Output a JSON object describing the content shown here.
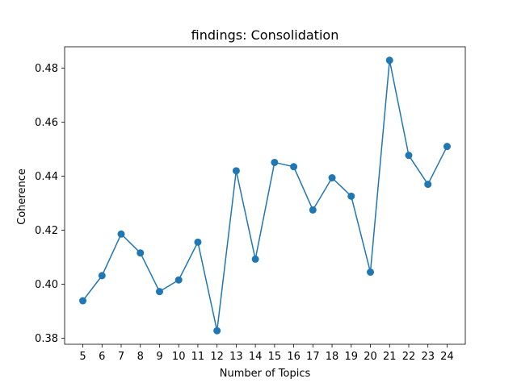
{
  "chart_data": {
    "type": "line",
    "title": "findings: Consolidation",
    "xlabel": "Number of Topics",
    "ylabel": "Coherence",
    "x": [
      5,
      6,
      7,
      8,
      9,
      10,
      11,
      12,
      13,
      14,
      15,
      16,
      17,
      18,
      19,
      20,
      21,
      22,
      23,
      24
    ],
    "series": [
      {
        "values": [
          0.3939,
          0.4032,
          0.4186,
          0.4116,
          0.3973,
          0.4016,
          0.4156,
          0.3828,
          0.442,
          0.4093,
          0.4451,
          0.4435,
          0.4275,
          0.4394,
          0.4326,
          0.4045,
          0.4829,
          0.4477,
          0.437,
          0.451
        ],
        "color": "#1f77b4",
        "marker": "circle"
      }
    ],
    "xlim": [
      4.05,
      24.95
    ],
    "ylim": [
      0.3778,
      0.4879
    ],
    "yticks": [
      0.38,
      0.4,
      0.42,
      0.44,
      0.46,
      0.48
    ],
    "ytick_labels": [
      "0.38",
      "0.40",
      "0.42",
      "0.44",
      "0.46",
      "0.48"
    ],
    "xticks": [
      5,
      6,
      7,
      8,
      9,
      10,
      11,
      12,
      13,
      14,
      15,
      16,
      17,
      18,
      19,
      20,
      21,
      22,
      23,
      24
    ],
    "grid": false,
    "legend": false
  }
}
